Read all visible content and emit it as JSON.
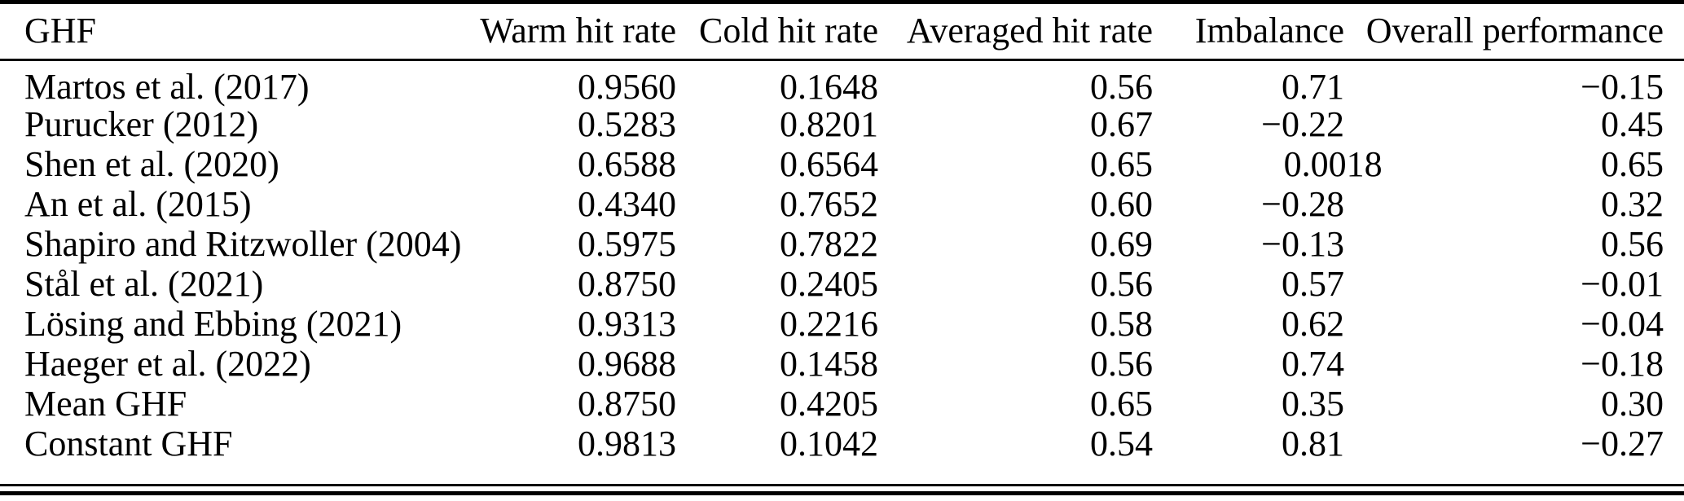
{
  "colors": {
    "text": "#000000",
    "background": "#ffffff",
    "rule": "#000000"
  },
  "table": {
    "columns": [
      {
        "label": "GHF"
      },
      {
        "label": "Warm hit rate"
      },
      {
        "label": "Cold hit rate"
      },
      {
        "label": "Averaged hit rate"
      },
      {
        "label": "Imbalance"
      },
      {
        "label": "Overall performance"
      }
    ],
    "rows": [
      [
        "Martos et al. (2017)",
        "0.9560",
        "0.1648",
        "0.56",
        "0.71",
        "−0.15"
      ],
      [
        "Purucker (2012)",
        "0.5283",
        "0.8201",
        "0.67",
        "−0.22",
        "0.45"
      ],
      [
        "Shen et al. (2020)",
        "0.6588",
        "0.6564",
        "0.65",
        "0.0018",
        "0.65"
      ],
      [
        "An et al. (2015)",
        "0.4340",
        "0.7652",
        "0.60",
        "−0.28",
        "0.32"
      ],
      [
        "Shapiro and Ritzwoller (2004)",
        "0.5975",
        "0.7822",
        "0.69",
        "−0.13",
        "0.56"
      ],
      [
        "Stål et al. (2021)",
        "0.8750",
        "0.2405",
        "0.56",
        "0.57",
        "−0.01"
      ],
      [
        "Lösing and Ebbing (2021)",
        "0.9313",
        "0.2216",
        "0.58",
        "0.62",
        "−0.04"
      ],
      [
        "Haeger et al. (2022)",
        "0.9688",
        "0.1458",
        "0.56",
        "0.74",
        "−0.18"
      ],
      [
        "Mean GHF",
        "0.8750",
        "0.4205",
        "0.65",
        "0.35",
        "0.30"
      ],
      [
        "Constant GHF",
        "0.9813",
        "0.1042",
        "0.54",
        "0.81",
        "−0.27"
      ]
    ]
  }
}
